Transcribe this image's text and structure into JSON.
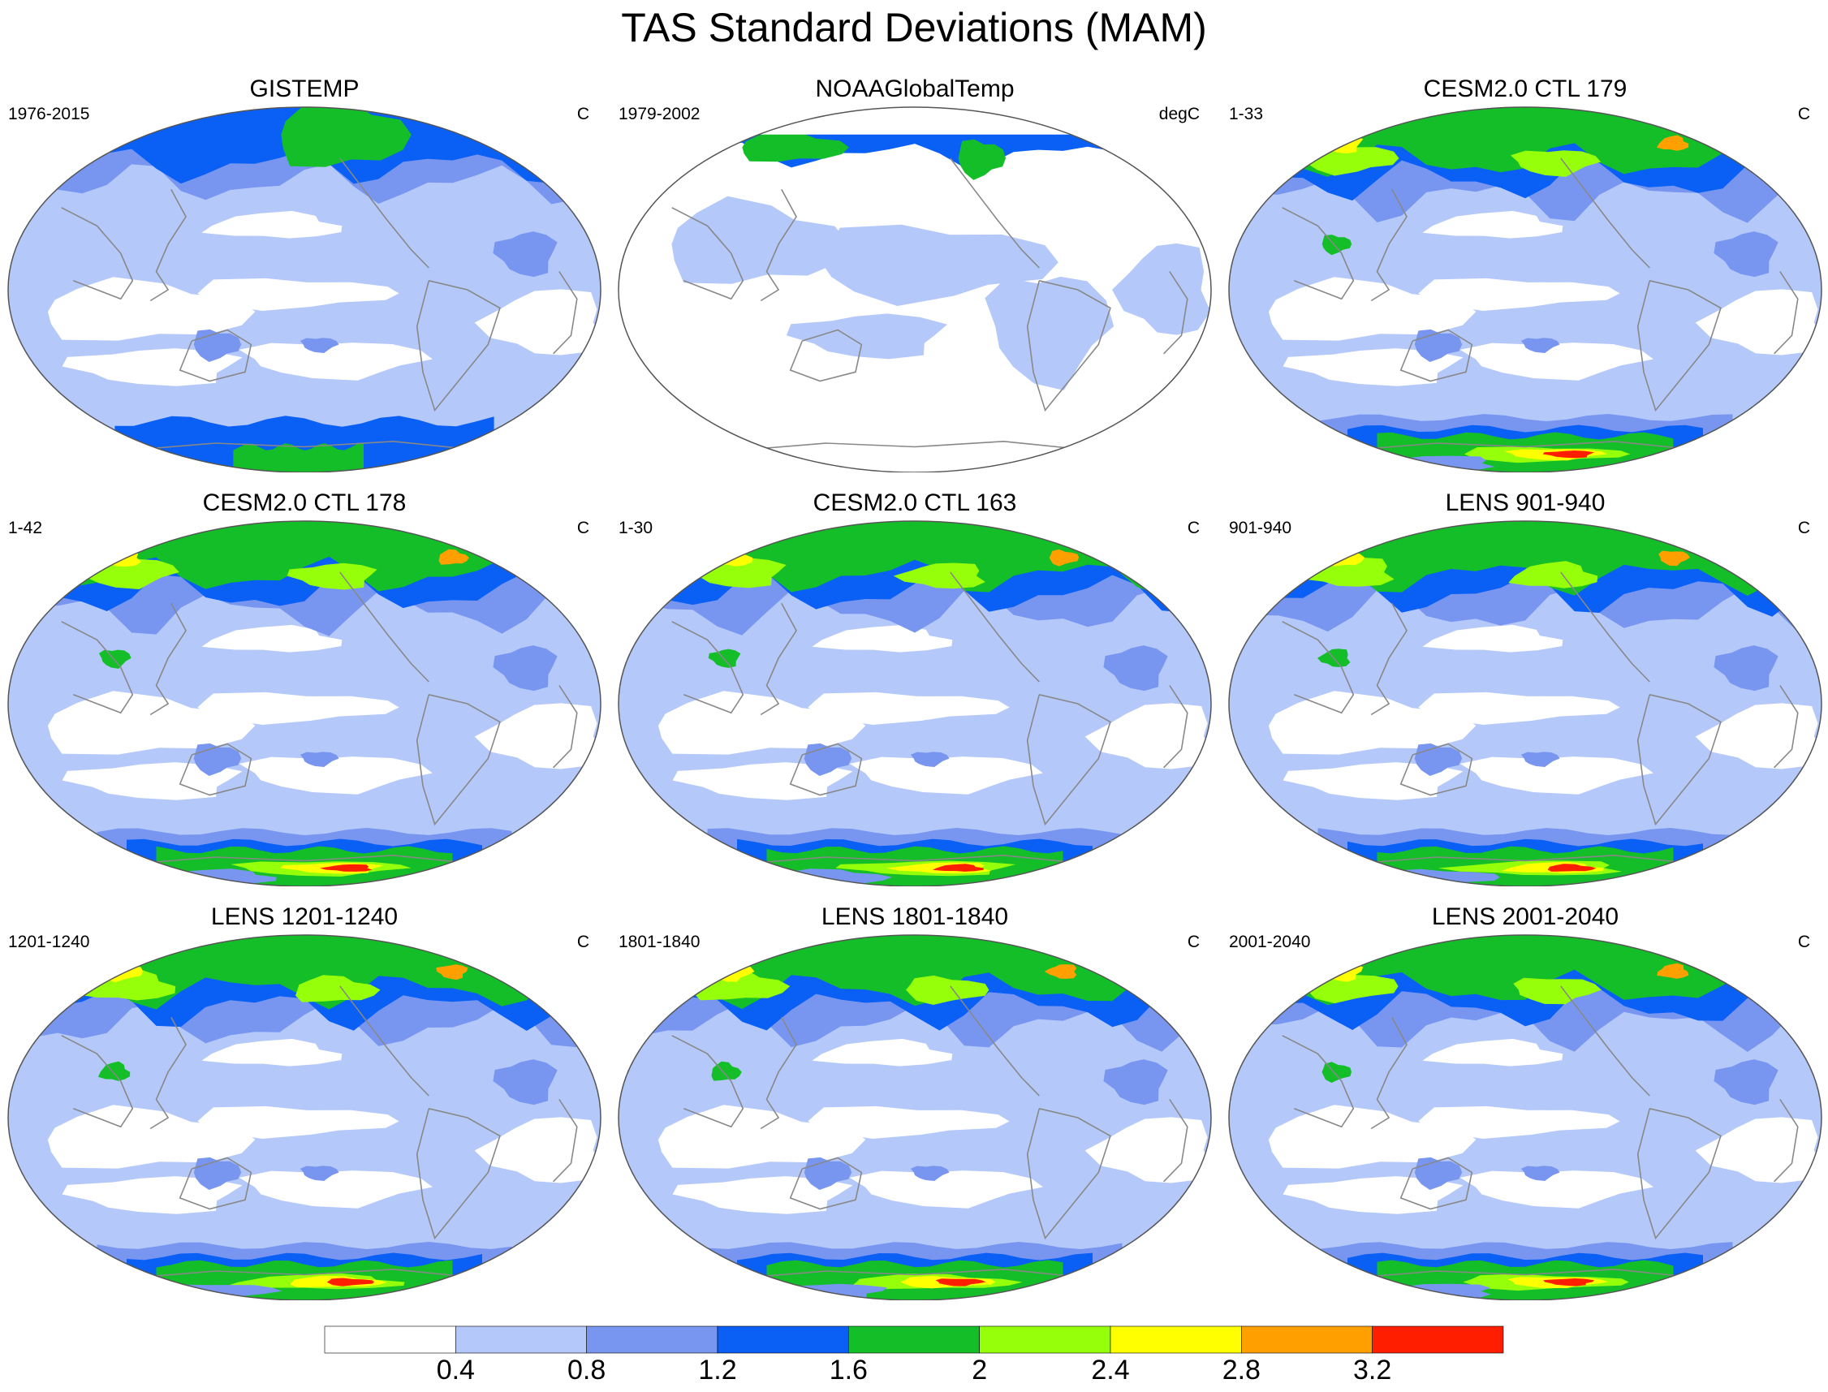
{
  "title": "TAS Standard Deviations (MAM)",
  "panels": [
    {
      "title": "GISTEMP",
      "left_label": "1976-2015",
      "right_label": "C",
      "variant": "obs"
    },
    {
      "title": "NOAAGlobalTemp",
      "left_label": "1979-2002",
      "right_label": "degC",
      "variant": "noaa"
    },
    {
      "title": "CESM2.0 CTL 179",
      "left_label": "1-33",
      "right_label": "C",
      "variant": "model"
    },
    {
      "title": "CESM2.0 CTL 178",
      "left_label": "1-42",
      "right_label": "C",
      "variant": "model"
    },
    {
      "title": "CESM2.0 CTL 163",
      "left_label": "1-30",
      "right_label": "C",
      "variant": "model"
    },
    {
      "title": "LENS 901-940",
      "left_label": "901-940",
      "right_label": "C",
      "variant": "model"
    },
    {
      "title": "LENS 1201-1240",
      "left_label": "1201-1240",
      "right_label": "C",
      "variant": "model"
    },
    {
      "title": "LENS 1801-1840",
      "left_label": "1801-1840",
      "right_label": "C",
      "variant": "model"
    },
    {
      "title": "LENS 2001-2040",
      "left_label": "2001-2040",
      "right_label": "C",
      "variant": "model"
    }
  ],
  "colorbar": {
    "labels": [
      "0.4",
      "0.8",
      "1.2",
      "1.6",
      "2",
      "2.4",
      "2.8",
      "3.2"
    ],
    "colors": [
      "#ffffff",
      "#b4c8fa",
      "#7896f0",
      "#0a5ff5",
      "#14be28",
      "#96ff0a",
      "#ffff00",
      "#ffa000",
      "#ff1e00"
    ]
  },
  "colors": {
    "coast": "#888888",
    "border": "#555555"
  }
}
